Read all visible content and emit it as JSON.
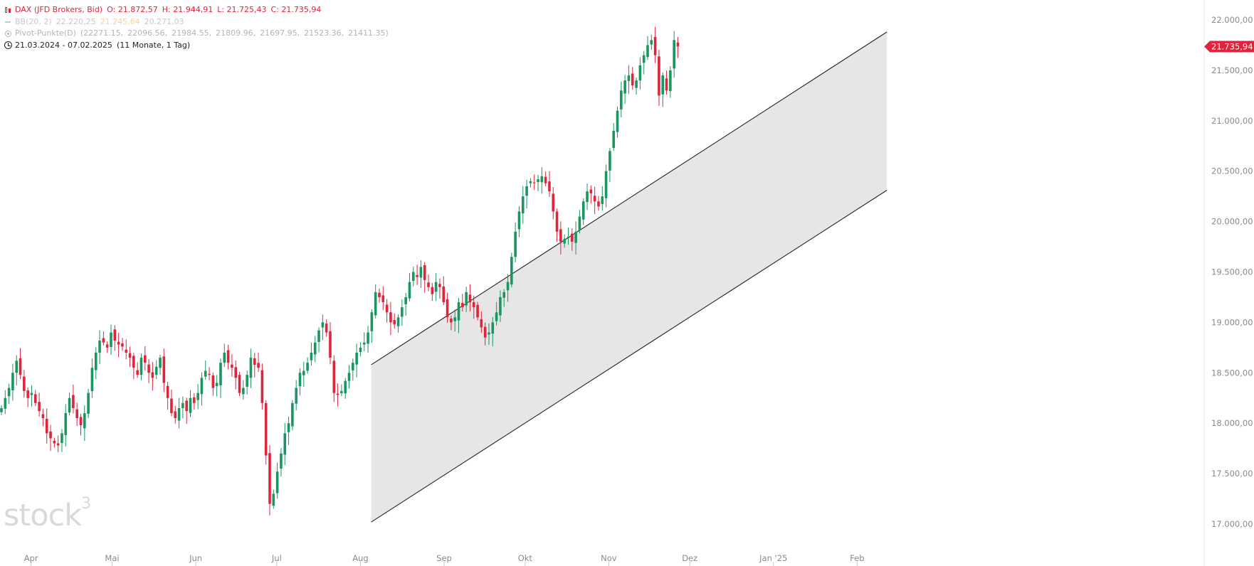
{
  "legend": {
    "instrument": "DAX (JFD Brokers, Bid)",
    "open": "O: 21.872,57",
    "high": "H: 21.944,91",
    "low": "L: 21.725,43",
    "close": "C: 21.735,94",
    "bb_label": "BB(20, 2)",
    "bb_upper": "22.220,25",
    "bb_middle": "21.245,64",
    "bb_lower": "20.271,03",
    "pivot_label": "Pivot-Punkte(D)",
    "pivot_values": [
      "(22271.15,",
      "22096.56,",
      "21984.55,",
      "21809.96,",
      "21697.95,",
      "21523.36,",
      "21411.35)"
    ],
    "range": "21.03.2024 - 07.02.2025",
    "range_length": "(11 Monate, 1 Tag)"
  },
  "watermark": {
    "brand": "stock",
    "sup": "3"
  },
  "colors": {
    "up": "#1a9660",
    "down": "#e0243c",
    "channel_fill": "#e6e6e6",
    "channel_line": "#222222",
    "axis_text": "#8a8a8a"
  },
  "chart_data": {
    "type": "candlestick",
    "ylim": [
      16700,
      22050
    ],
    "y_ticks": [
      "22.000,00",
      "21.500,00",
      "21.000,00",
      "20.500,00",
      "20.000,00",
      "19.500,00",
      "19.000,00",
      "18.500,00",
      "18.000,00",
      "17.500,00",
      "17.000,00"
    ],
    "x_ticks": [
      "Apr",
      "Mai",
      "Jun",
      "Jul",
      "Aug",
      "Sep",
      "Okt",
      "Nov",
      "Dez",
      "Jan '25",
      "Feb"
    ],
    "last_price": 21735.94,
    "last_price_label": "21.735,94",
    "channel": {
      "upper": [
        {
          "date": "2024-08-05",
          "value": 18580
        },
        {
          "date": "2025-02-12",
          "value": 21880
        }
      ],
      "lower": [
        {
          "date": "2024-08-05",
          "value": 17020
        },
        {
          "date": "2025-02-12",
          "value": 20310
        }
      ]
    },
    "closes": [
      18150,
      18250,
      18350,
      18500,
      18620,
      18480,
      18320,
      18250,
      18300,
      18200,
      18120,
      18050,
      17900,
      17850,
      17800,
      17780,
      17900,
      18100,
      18250,
      18150,
      18050,
      17980,
      18100,
      18300,
      18550,
      18700,
      18820,
      18800,
      18750,
      18900,
      18820,
      18780,
      18760,
      18700,
      18650,
      18550,
      18480,
      18650,
      18600,
      18500,
      18450,
      18560,
      18650,
      18400,
      18250,
      18100,
      18050,
      18150,
      18200,
      18120,
      18250,
      18200,
      18300,
      18450,
      18520,
      18480,
      18350,
      18400,
      18600,
      18700,
      18600,
      18550,
      18450,
      18300,
      18350,
      18480,
      18650,
      18580,
      18550,
      18200,
      17680,
      17200,
      17300,
      17520,
      17700,
      17900,
      18000,
      18200,
      18350,
      18500,
      18520,
      18600,
      18700,
      18800,
      18920,
      19000,
      18900,
      18650,
      18300,
      18280,
      18320,
      18420,
      18500,
      18600,
      18700,
      18750,
      18800,
      18900,
      19100,
      19300,
      19250,
      19200,
      19100,
      19000,
      18980,
      19050,
      19150,
      19250,
      19400,
      19500,
      19450,
      19550,
      19420,
      19350,
      19280,
      19400,
      19350,
      19200,
      19050,
      19000,
      19050,
      19200,
      19150,
      19300,
      19200,
      19150,
      19050,
      18950,
      18850,
      18900,
      19000,
      19100,
      19250,
      19300,
      19400,
      19650,
      19900,
      20100,
      20250,
      20350,
      20400,
      20380,
      20420,
      20450,
      20380,
      20300,
      20100,
      19900,
      19800,
      19830,
      19850,
      19800,
      19900,
      20050,
      20200,
      20300,
      20280,
      20200,
      20150,
      20250,
      20500,
      20700,
      20900,
      21100,
      21300,
      21400,
      21450,
      21350,
      21400,
      21550,
      21650,
      21750,
      21800,
      21650,
      21250,
      21450,
      21300,
      21500,
      21800,
      21735.94
    ],
    "dates": {
      "first": "2024-03-21",
      "last": "2025-02-07"
    }
  }
}
